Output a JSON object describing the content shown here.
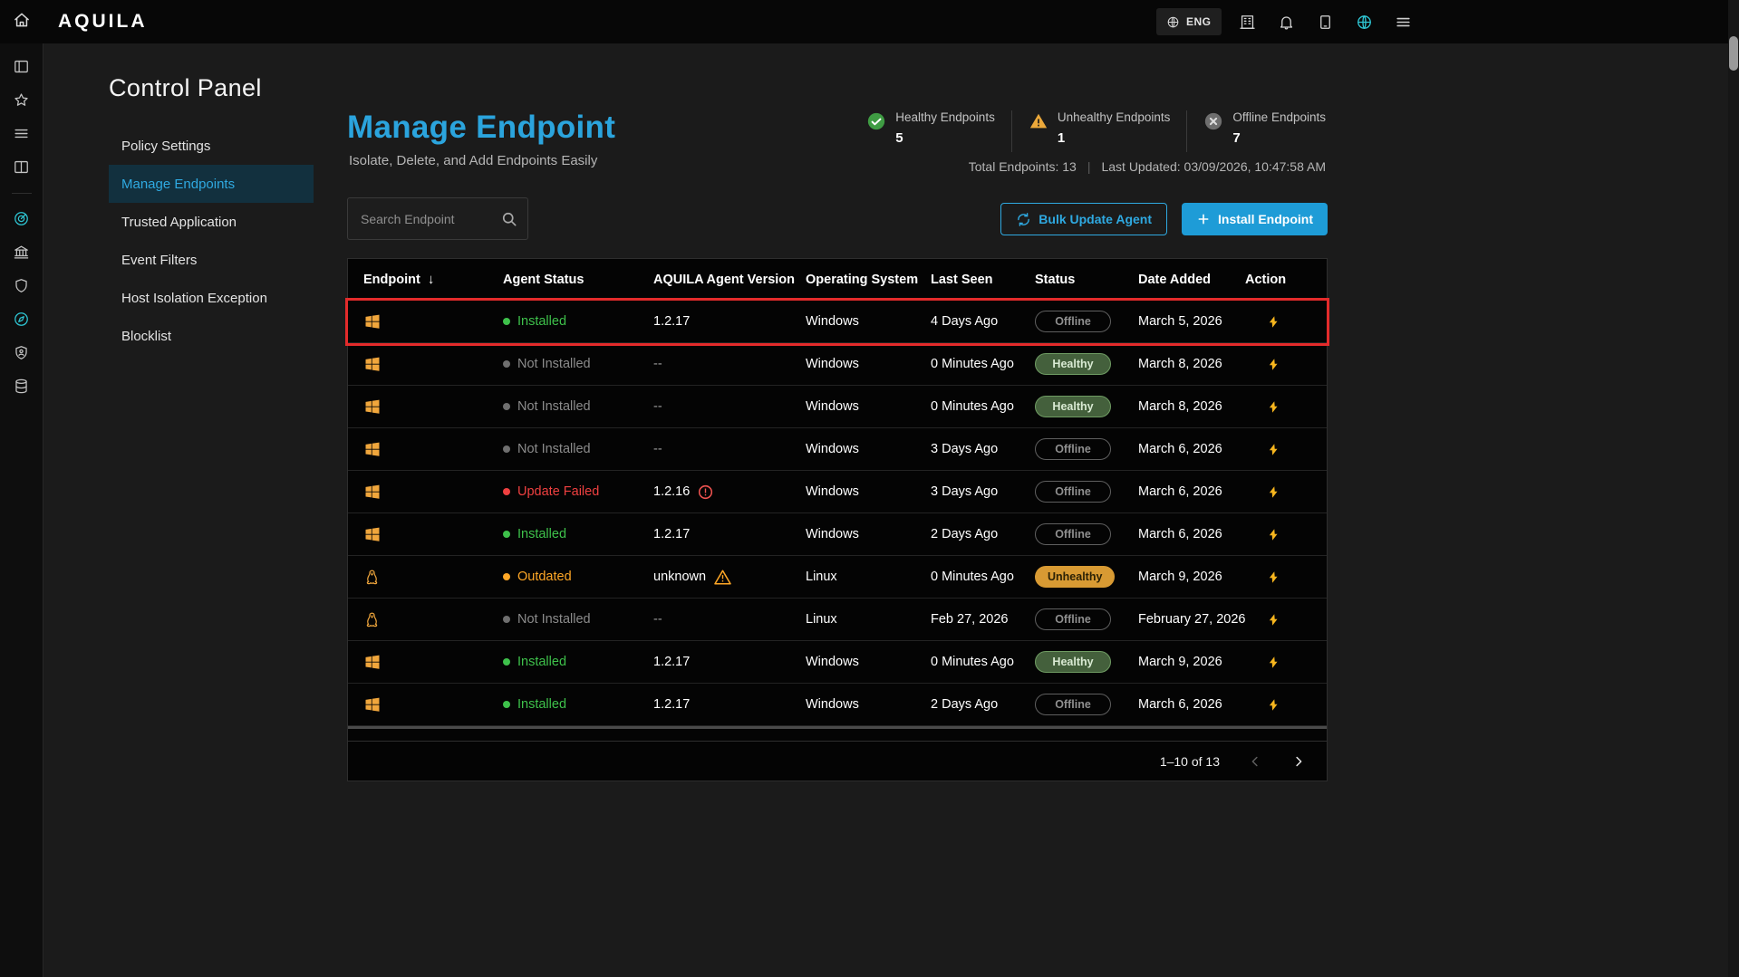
{
  "topbar": {
    "brand": "AQUILA",
    "language": "ENG",
    "icons": [
      "building",
      "bell",
      "tablet",
      "globe-network",
      "hamburger"
    ]
  },
  "rail": {
    "icons": [
      "layout-panel",
      "star",
      "menu-lines",
      "layout-columns",
      "radar",
      "bank",
      "shield",
      "compass",
      "shield-user",
      "database"
    ],
    "divider_after": 3
  },
  "control_panel": {
    "title": "Control Panel",
    "menu": [
      {
        "label": "Policy Settings",
        "active": false
      },
      {
        "label": "Manage Endpoints",
        "active": true
      },
      {
        "label": "Trusted Application",
        "active": false
      },
      {
        "label": "Event Filters",
        "active": false
      },
      {
        "label": "Host Isolation Exception",
        "active": false
      },
      {
        "label": "Blocklist",
        "active": false
      }
    ]
  },
  "page": {
    "title": "Manage Endpoint",
    "subtitle": "Isolate, Delete, and Add Endpoints Easily",
    "stats": [
      {
        "label": "Healthy Endpoints",
        "value": "5",
        "icon": "check-circle-icon",
        "color": "#3f9c43"
      },
      {
        "label": "Unhealthy Endpoints",
        "value": "1",
        "icon": "warning-triangle-icon",
        "color": "#eba83a"
      },
      {
        "label": "Offline Endpoints",
        "value": "7",
        "icon": "x-circle-icon",
        "color": "#6e6e6e"
      }
    ],
    "total_endpoints": "Total Endpoints: 13",
    "last_updated": "Last Updated: 03/09/2026, 10:47:58 AM",
    "search": {
      "placeholder": "Search Endpoint"
    },
    "bulk_update_label": "Bulk Update Agent",
    "install_label": "Install Endpoint"
  },
  "table": {
    "columns": [
      "Endpoint",
      "Agent Status",
      "AQUILA Agent Version",
      "Operating System",
      "Last Seen",
      "Status",
      "Date Added",
      "Action"
    ],
    "sort_icon": "↓",
    "rows": [
      {
        "endpoint_os": "windows",
        "agent_status": "Installed",
        "agent_state": "installed",
        "version": "1.2.17",
        "version_flag": "",
        "os": "Windows",
        "last_seen": "4 Days Ago",
        "status": "Offline",
        "date_added": "March 5, 2026",
        "highlighted": true
      },
      {
        "endpoint_os": "windows",
        "agent_status": "Not Installed",
        "agent_state": "not-installed",
        "version": "--",
        "version_flag": "",
        "os": "Windows",
        "last_seen": "0 Minutes Ago",
        "status": "Healthy",
        "date_added": "March 8, 2026",
        "highlighted": false
      },
      {
        "endpoint_os": "windows",
        "agent_status": "Not Installed",
        "agent_state": "not-installed",
        "version": "--",
        "version_flag": "",
        "os": "Windows",
        "last_seen": "0 Minutes Ago",
        "status": "Healthy",
        "date_added": "March 8, 2026",
        "highlighted": false
      },
      {
        "endpoint_os": "windows",
        "agent_status": "Not Installed",
        "agent_state": "not-installed",
        "version": "--",
        "version_flag": "",
        "os": "Windows",
        "last_seen": "3 Days Ago",
        "status": "Offline",
        "date_added": "March 6, 2026",
        "highlighted": false
      },
      {
        "endpoint_os": "windows",
        "agent_status": "Update Failed",
        "agent_state": "failed",
        "version": "1.2.16",
        "version_flag": "error",
        "os": "Windows",
        "last_seen": "3 Days Ago",
        "status": "Offline",
        "date_added": "March 6, 2026",
        "highlighted": false
      },
      {
        "endpoint_os": "windows",
        "agent_status": "Installed",
        "agent_state": "installed",
        "version": "1.2.17",
        "version_flag": "",
        "os": "Windows",
        "last_seen": "2 Days Ago",
        "status": "Offline",
        "date_added": "March 6, 2026",
        "highlighted": false
      },
      {
        "endpoint_os": "linux",
        "agent_status": "Outdated",
        "agent_state": "outdated",
        "version": "unknown",
        "version_flag": "warning",
        "os": "Linux",
        "last_seen": "0 Minutes Ago",
        "status": "Unhealthy",
        "date_added": "March 9, 2026",
        "highlighted": false
      },
      {
        "endpoint_os": "linux",
        "agent_status": "Not Installed",
        "agent_state": "not-installed",
        "version": "--",
        "version_flag": "",
        "os": "Linux",
        "last_seen": "Feb 27, 2026",
        "status": "Offline",
        "date_added": "February 27, 2026",
        "highlighted": false
      },
      {
        "endpoint_os": "windows",
        "agent_status": "Installed",
        "agent_state": "installed",
        "version": "1.2.17",
        "version_flag": "",
        "os": "Windows",
        "last_seen": "0 Minutes Ago",
        "status": "Healthy",
        "date_added": "March 9, 2026",
        "highlighted": false
      },
      {
        "endpoint_os": "windows",
        "agent_status": "Installed",
        "agent_state": "installed",
        "version": "1.2.17",
        "version_flag": "",
        "os": "Windows",
        "last_seen": "2 Days Ago",
        "status": "Offline",
        "date_added": "March 6, 2026",
        "highlighted": false
      }
    ],
    "pagination": {
      "range": "1–10 of 13"
    }
  },
  "colors": {
    "accent": "#2fa9e1",
    "green": "#3ec14b",
    "orange": "#ffa726",
    "red": "#ef4040",
    "highlight_border": "#e32b2b",
    "os_icon": "#f0a63c",
    "bolt": "#f6b51e"
  }
}
